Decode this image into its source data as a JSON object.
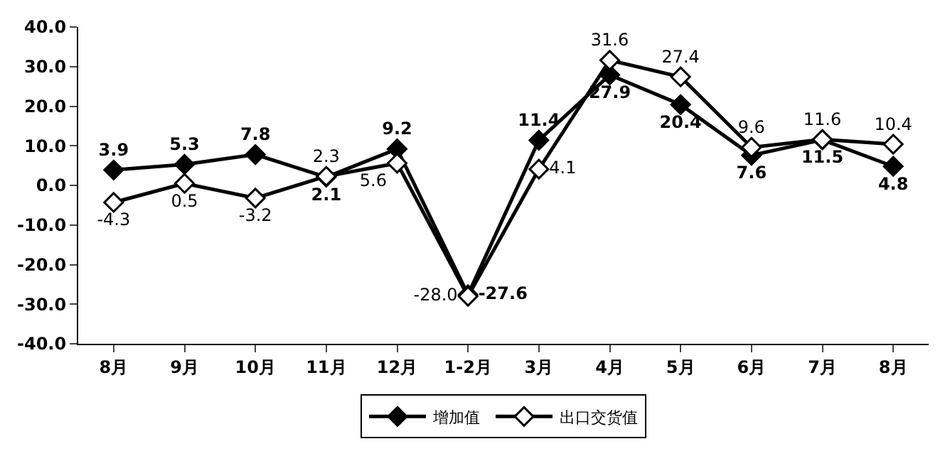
{
  "chart_data": {
    "type": "line",
    "categories": [
      "8月",
      "9月",
      "10月",
      "11月",
      "12月",
      "1-2月",
      "3月",
      "4月",
      "5月",
      "6月",
      "7月",
      "8月"
    ],
    "series": [
      {
        "name": "增加值",
        "color": "#000000",
        "marker": "diamond",
        "values": [
          3.9,
          5.3,
          7.8,
          2.1,
          9.2,
          -27.6,
          11.4,
          27.9,
          20.4,
          7.6,
          11.5,
          4.8
        ],
        "value_labels": [
          "3.9",
          "5.3",
          "7.8",
          "2.1",
          "9.2",
          "-27.6",
          "11.4",
          "27.9",
          "20.4",
          "7.6",
          "11.5",
          "4.8"
        ]
      },
      {
        "name": "出口交货值",
        "color": "#000000",
        "marker": "diamond-open",
        "values": [
          -4.3,
          0.5,
          -3.2,
          2.3,
          5.6,
          -28.0,
          4.1,
          31.6,
          27.4,
          9.6,
          11.6,
          10.4
        ],
        "value_labels": [
          "-4.3",
          "0.5",
          "-3.2",
          "2.3",
          "5.6",
          "-28.0",
          "4.1",
          "31.6",
          "27.4",
          "9.6",
          "11.6",
          "10.4"
        ]
      }
    ],
    "ylim": [
      -40,
      40
    ],
    "yticks": [
      {
        "value": -40,
        "label": "-40.0"
      },
      {
        "value": -30,
        "label": "-30.0"
      },
      {
        "value": -20,
        "label": "-20.0"
      },
      {
        "value": -10,
        "label": "-10.0"
      },
      {
        "value": 0,
        "label": "0.0"
      },
      {
        "value": 10,
        "label": "10.0"
      },
      {
        "value": 20,
        "label": "20.0"
      },
      {
        "value": 30,
        "label": "30.0"
      },
      {
        "value": 40,
        "label": "40.0"
      }
    ],
    "legend": "bottom",
    "line_style": "solid"
  }
}
